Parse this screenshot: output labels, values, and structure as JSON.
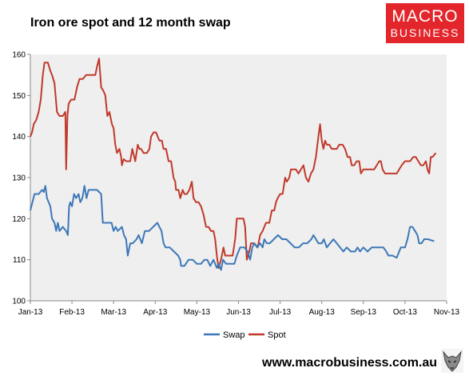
{
  "header": {
    "title": "Iron ore spot and 12 month swap"
  },
  "logo": {
    "line1": "MACRO",
    "line2": "BUSINESS"
  },
  "footer": {
    "url": "www.macrobusiness.com.au"
  },
  "colors": {
    "spot": "#c0392b",
    "swap": "#3d78b8",
    "plot_bg": "#efefef",
    "logo_bg": "#e3262b"
  },
  "chart_data": {
    "type": "line",
    "title": "Iron ore spot and 12 month swap",
    "xlabel": "",
    "ylabel": "",
    "ylim": [
      100,
      160
    ],
    "yticks": [
      100,
      110,
      120,
      130,
      140,
      150,
      160
    ],
    "xlim": [
      0,
      10
    ],
    "x_tick_labels": [
      "Jan-13",
      "Feb-13",
      "Mar-13",
      "Apr-13",
      "May-13",
      "Jun-13",
      "Jul-13",
      "Aug-13",
      "Sep-13",
      "Oct-13",
      "Nov-13"
    ],
    "grid": false,
    "legend": "bottom",
    "series": [
      {
        "name": "Swap",
        "color": "#3d78b8",
        "points": [
          [
            0.0,
            122
          ],
          [
            0.05,
            124
          ],
          [
            0.1,
            126
          ],
          [
            0.2,
            126
          ],
          [
            0.28,
            127
          ],
          [
            0.32,
            126.5
          ],
          [
            0.36,
            128
          ],
          [
            0.4,
            125
          ],
          [
            0.48,
            123
          ],
          [
            0.52,
            120
          ],
          [
            0.58,
            119
          ],
          [
            0.62,
            117
          ],
          [
            0.66,
            119
          ],
          [
            0.7,
            117
          ],
          [
            0.78,
            118
          ],
          [
            0.86,
            117
          ],
          [
            0.9,
            116
          ],
          [
            0.93,
            123
          ],
          [
            0.96,
            124
          ],
          [
            1.0,
            123
          ],
          [
            1.05,
            126
          ],
          [
            1.1,
            125
          ],
          [
            1.16,
            126
          ],
          [
            1.2,
            124
          ],
          [
            1.25,
            125
          ],
          [
            1.3,
            128
          ],
          [
            1.35,
            125
          ],
          [
            1.4,
            127
          ],
          [
            1.5,
            127
          ],
          [
            1.6,
            127
          ],
          [
            1.7,
            126
          ],
          [
            1.74,
            119
          ],
          [
            1.85,
            119
          ],
          [
            1.95,
            119
          ],
          [
            2.0,
            117
          ],
          [
            2.05,
            118
          ],
          [
            2.1,
            117
          ],
          [
            2.2,
            118
          ],
          [
            2.25,
            116
          ],
          [
            2.3,
            115
          ],
          [
            2.34,
            111
          ],
          [
            2.4,
            114
          ],
          [
            2.46,
            114
          ],
          [
            2.55,
            115
          ],
          [
            2.6,
            116
          ],
          [
            2.68,
            114
          ],
          [
            2.75,
            117
          ],
          [
            2.85,
            117
          ],
          [
            2.95,
            118
          ],
          [
            3.05,
            119
          ],
          [
            3.1,
            118
          ],
          [
            3.15,
            117
          ],
          [
            3.2,
            114
          ],
          [
            3.25,
            113
          ],
          [
            3.35,
            113
          ],
          [
            3.45,
            112
          ],
          [
            3.55,
            111
          ],
          [
            3.6,
            110
          ],
          [
            3.62,
            108.5
          ],
          [
            3.7,
            108.5
          ],
          [
            3.8,
            110
          ],
          [
            3.9,
            110
          ],
          [
            4.0,
            109
          ],
          [
            4.1,
            109
          ],
          [
            4.18,
            110
          ],
          [
            4.25,
            110
          ],
          [
            4.32,
            108.5
          ],
          [
            4.4,
            110
          ],
          [
            4.48,
            108
          ],
          [
            4.52,
            109
          ],
          [
            4.58,
            107.5
          ],
          [
            4.63,
            110
          ],
          [
            4.7,
            109
          ],
          [
            4.8,
            109
          ],
          [
            4.9,
            109
          ],
          [
            4.96,
            111
          ],
          [
            5.04,
            113
          ],
          [
            5.14,
            113
          ],
          [
            5.22,
            112
          ],
          [
            5.28,
            110
          ],
          [
            5.33,
            113
          ],
          [
            5.38,
            114
          ],
          [
            5.45,
            113
          ],
          [
            5.52,
            114
          ],
          [
            5.58,
            113
          ],
          [
            5.62,
            115
          ],
          [
            5.68,
            114
          ],
          [
            5.75,
            114
          ],
          [
            5.85,
            115
          ],
          [
            5.95,
            116
          ],
          [
            6.05,
            115
          ],
          [
            6.15,
            115
          ],
          [
            6.25,
            114
          ],
          [
            6.35,
            113
          ],
          [
            6.45,
            113
          ],
          [
            6.55,
            114
          ],
          [
            6.65,
            114
          ],
          [
            6.75,
            115
          ],
          [
            6.8,
            116
          ],
          [
            6.86,
            115
          ],
          [
            6.92,
            114
          ],
          [
            7.0,
            114
          ],
          [
            7.05,
            115
          ],
          [
            7.12,
            113
          ],
          [
            7.2,
            114
          ],
          [
            7.28,
            115
          ],
          [
            7.36,
            114
          ],
          [
            7.44,
            113
          ],
          [
            7.52,
            112
          ],
          [
            7.6,
            113
          ],
          [
            7.7,
            112
          ],
          [
            7.8,
            112
          ],
          [
            7.86,
            113
          ],
          [
            7.92,
            112
          ],
          [
            8.0,
            113
          ],
          [
            8.1,
            112
          ],
          [
            8.2,
            113
          ],
          [
            8.3,
            113
          ],
          [
            8.4,
            113
          ],
          [
            8.48,
            113
          ],
          [
            8.55,
            112
          ],
          [
            8.6,
            111
          ],
          [
            8.7,
            111
          ],
          [
            8.8,
            110.5
          ],
          [
            8.9,
            113
          ],
          [
            9.0,
            113
          ],
          [
            9.06,
            115
          ],
          [
            9.12,
            118
          ],
          [
            9.18,
            118
          ],
          [
            9.24,
            117
          ],
          [
            9.3,
            116
          ],
          [
            9.34,
            114
          ],
          [
            9.4,
            114
          ],
          [
            9.46,
            115
          ],
          [
            9.55,
            115
          ],
          [
            9.7,
            114.5
          ]
        ]
      },
      {
        "name": "Spot",
        "color": "#c0392b",
        "points": [
          [
            0.0,
            140
          ],
          [
            0.04,
            141
          ],
          [
            0.08,
            143
          ],
          [
            0.14,
            144
          ],
          [
            0.2,
            146
          ],
          [
            0.25,
            149
          ],
          [
            0.3,
            155
          ],
          [
            0.34,
            158
          ],
          [
            0.42,
            158
          ],
          [
            0.48,
            156
          ],
          [
            0.52,
            155
          ],
          [
            0.58,
            153
          ],
          [
            0.64,
            146
          ],
          [
            0.7,
            145
          ],
          [
            0.78,
            145
          ],
          [
            0.84,
            146
          ],
          [
            0.86,
            132
          ],
          [
            0.89,
            145
          ],
          [
            0.92,
            148
          ],
          [
            0.98,
            149
          ],
          [
            1.06,
            149
          ],
          [
            1.12,
            152
          ],
          [
            1.18,
            154
          ],
          [
            1.26,
            154
          ],
          [
            1.34,
            155
          ],
          [
            1.42,
            155
          ],
          [
            1.5,
            155
          ],
          [
            1.56,
            155
          ],
          [
            1.6,
            157
          ],
          [
            1.65,
            159
          ],
          [
            1.7,
            152
          ],
          [
            1.76,
            151
          ],
          [
            1.8,
            150
          ],
          [
            1.85,
            145
          ],
          [
            1.9,
            146
          ],
          [
            1.96,
            143
          ],
          [
            2.0,
            142
          ],
          [
            2.04,
            138
          ],
          [
            2.08,
            136
          ],
          [
            2.14,
            137
          ],
          [
            2.18,
            135
          ],
          [
            2.2,
            133
          ],
          [
            2.24,
            134.5
          ],
          [
            2.3,
            134
          ],
          [
            2.4,
            134
          ],
          [
            2.45,
            137
          ],
          [
            2.52,
            134
          ],
          [
            2.58,
            138
          ],
          [
            2.62,
            137
          ],
          [
            2.66,
            137
          ],
          [
            2.72,
            136
          ],
          [
            2.8,
            136
          ],
          [
            2.86,
            137
          ],
          [
            2.9,
            140
          ],
          [
            2.96,
            141
          ],
          [
            3.02,
            141
          ],
          [
            3.06,
            140
          ],
          [
            3.1,
            139
          ],
          [
            3.16,
            139
          ],
          [
            3.2,
            137
          ],
          [
            3.26,
            137
          ],
          [
            3.32,
            134
          ],
          [
            3.38,
            134
          ],
          [
            3.44,
            130
          ],
          [
            3.48,
            129
          ],
          [
            3.5,
            127
          ],
          [
            3.56,
            127
          ],
          [
            3.6,
            125
          ],
          [
            3.66,
            127
          ],
          [
            3.7,
            126
          ],
          [
            3.76,
            126
          ],
          [
            3.82,
            127
          ],
          [
            3.88,
            129
          ],
          [
            3.92,
            125
          ],
          [
            3.98,
            124
          ],
          [
            4.04,
            124
          ],
          [
            4.1,
            123
          ],
          [
            4.16,
            121
          ],
          [
            4.22,
            118
          ],
          [
            4.28,
            118
          ],
          [
            4.34,
            117
          ],
          [
            4.4,
            117
          ],
          [
            4.44,
            115
          ],
          [
            4.48,
            111
          ],
          [
            4.52,
            108
          ],
          [
            4.58,
            110
          ],
          [
            4.64,
            113
          ],
          [
            4.68,
            111
          ],
          [
            4.74,
            111
          ],
          [
            4.8,
            111
          ],
          [
            4.86,
            111
          ],
          [
            4.92,
            115
          ],
          [
            4.96,
            120
          ],
          [
            5.04,
            120
          ],
          [
            5.12,
            120
          ],
          [
            5.16,
            118
          ],
          [
            5.2,
            110
          ],
          [
            5.26,
            112
          ],
          [
            5.3,
            114
          ],
          [
            5.38,
            114
          ],
          [
            5.46,
            113
          ],
          [
            5.52,
            116
          ],
          [
            5.58,
            117
          ],
          [
            5.62,
            118
          ],
          [
            5.66,
            119
          ],
          [
            5.74,
            119
          ],
          [
            5.8,
            122
          ],
          [
            5.86,
            122
          ],
          [
            5.9,
            124
          ],
          [
            5.94,
            125
          ],
          [
            6.0,
            126
          ],
          [
            6.06,
            126
          ],
          [
            6.12,
            130
          ],
          [
            6.16,
            129
          ],
          [
            6.22,
            130
          ],
          [
            6.26,
            132
          ],
          [
            6.32,
            132
          ],
          [
            6.38,
            132
          ],
          [
            6.44,
            131
          ],
          [
            6.5,
            132
          ],
          [
            6.56,
            133
          ],
          [
            6.62,
            130
          ],
          [
            6.68,
            129
          ],
          [
            6.74,
            131
          ],
          [
            6.8,
            132
          ],
          [
            6.86,
            135
          ],
          [
            6.92,
            140
          ],
          [
            6.96,
            143
          ],
          [
            7.0,
            139
          ],
          [
            7.04,
            137
          ],
          [
            7.08,
            139
          ],
          [
            7.12,
            138
          ],
          [
            7.18,
            138
          ],
          [
            7.24,
            137
          ],
          [
            7.3,
            137
          ],
          [
            7.36,
            137
          ],
          [
            7.42,
            138
          ],
          [
            7.5,
            138
          ],
          [
            7.56,
            137
          ],
          [
            7.62,
            135
          ],
          [
            7.68,
            135
          ],
          [
            7.72,
            133
          ],
          [
            7.78,
            133
          ],
          [
            7.84,
            134
          ],
          [
            7.9,
            134
          ],
          [
            7.94,
            131
          ],
          [
            8.0,
            132
          ],
          [
            8.08,
            132
          ],
          [
            8.14,
            132
          ],
          [
            8.2,
            132
          ],
          [
            8.26,
            132
          ],
          [
            8.32,
            133
          ],
          [
            8.38,
            134
          ],
          [
            8.42,
            134
          ],
          [
            8.46,
            132
          ],
          [
            8.52,
            131
          ],
          [
            8.6,
            131
          ],
          [
            8.7,
            131
          ],
          [
            8.8,
            131
          ],
          [
            8.86,
            132
          ],
          [
            8.92,
            133
          ],
          [
            9.0,
            134
          ],
          [
            9.06,
            134
          ],
          [
            9.12,
            134
          ],
          [
            9.2,
            135
          ],
          [
            9.26,
            135
          ],
          [
            9.32,
            134
          ],
          [
            9.38,
            133
          ],
          [
            9.44,
            133
          ],
          [
            9.5,
            134
          ],
          [
            9.54,
            132
          ],
          [
            9.58,
            131
          ],
          [
            9.62,
            135
          ],
          [
            9.66,
            135
          ],
          [
            9.74,
            136
          ]
        ]
      }
    ]
  }
}
